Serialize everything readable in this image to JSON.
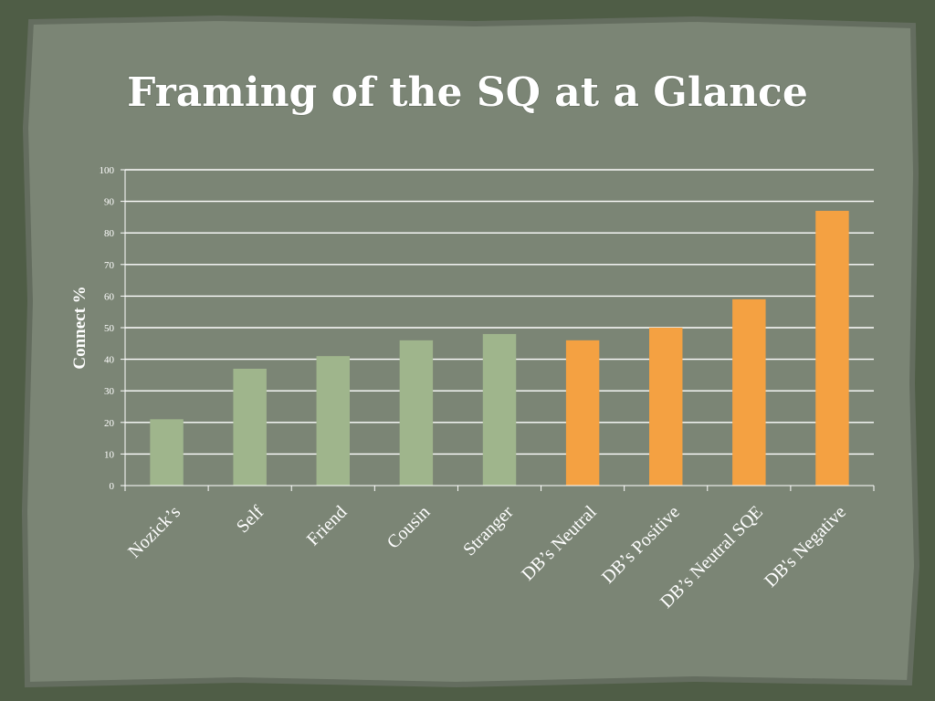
{
  "slide": {
    "title": "Framing of the SQ at a Glance",
    "colors": {
      "outer_background": "#4f5d46",
      "panel": "#7b8575",
      "panel_edge": "#646d5f",
      "gridline": "#ffffff",
      "bar_green": "#9fb58c",
      "bar_orange": "#f4a142"
    }
  },
  "chart_data": {
    "type": "bar",
    "title": "",
    "xlabel": "",
    "ylabel": "Connect %",
    "ylim": [
      0,
      100
    ],
    "yticks": [
      0,
      10,
      20,
      30,
      40,
      50,
      60,
      70,
      80,
      90,
      100
    ],
    "grid": true,
    "legend": "none",
    "categories": [
      "Nozick’s",
      "Self",
      "Friend",
      "Cousin",
      "Stranger",
      "DB’s Neutral",
      "DB’s Positive",
      "DB’s Neutral SQE",
      "DB's Negative"
    ],
    "values": [
      21,
      37,
      41,
      46,
      48,
      46,
      50,
      59,
      87
    ],
    "bar_colors": [
      "#9fb58c",
      "#9fb58c",
      "#9fb58c",
      "#9fb58c",
      "#9fb58c",
      "#f4a142",
      "#f4a142",
      "#f4a142",
      "#f4a142"
    ]
  }
}
